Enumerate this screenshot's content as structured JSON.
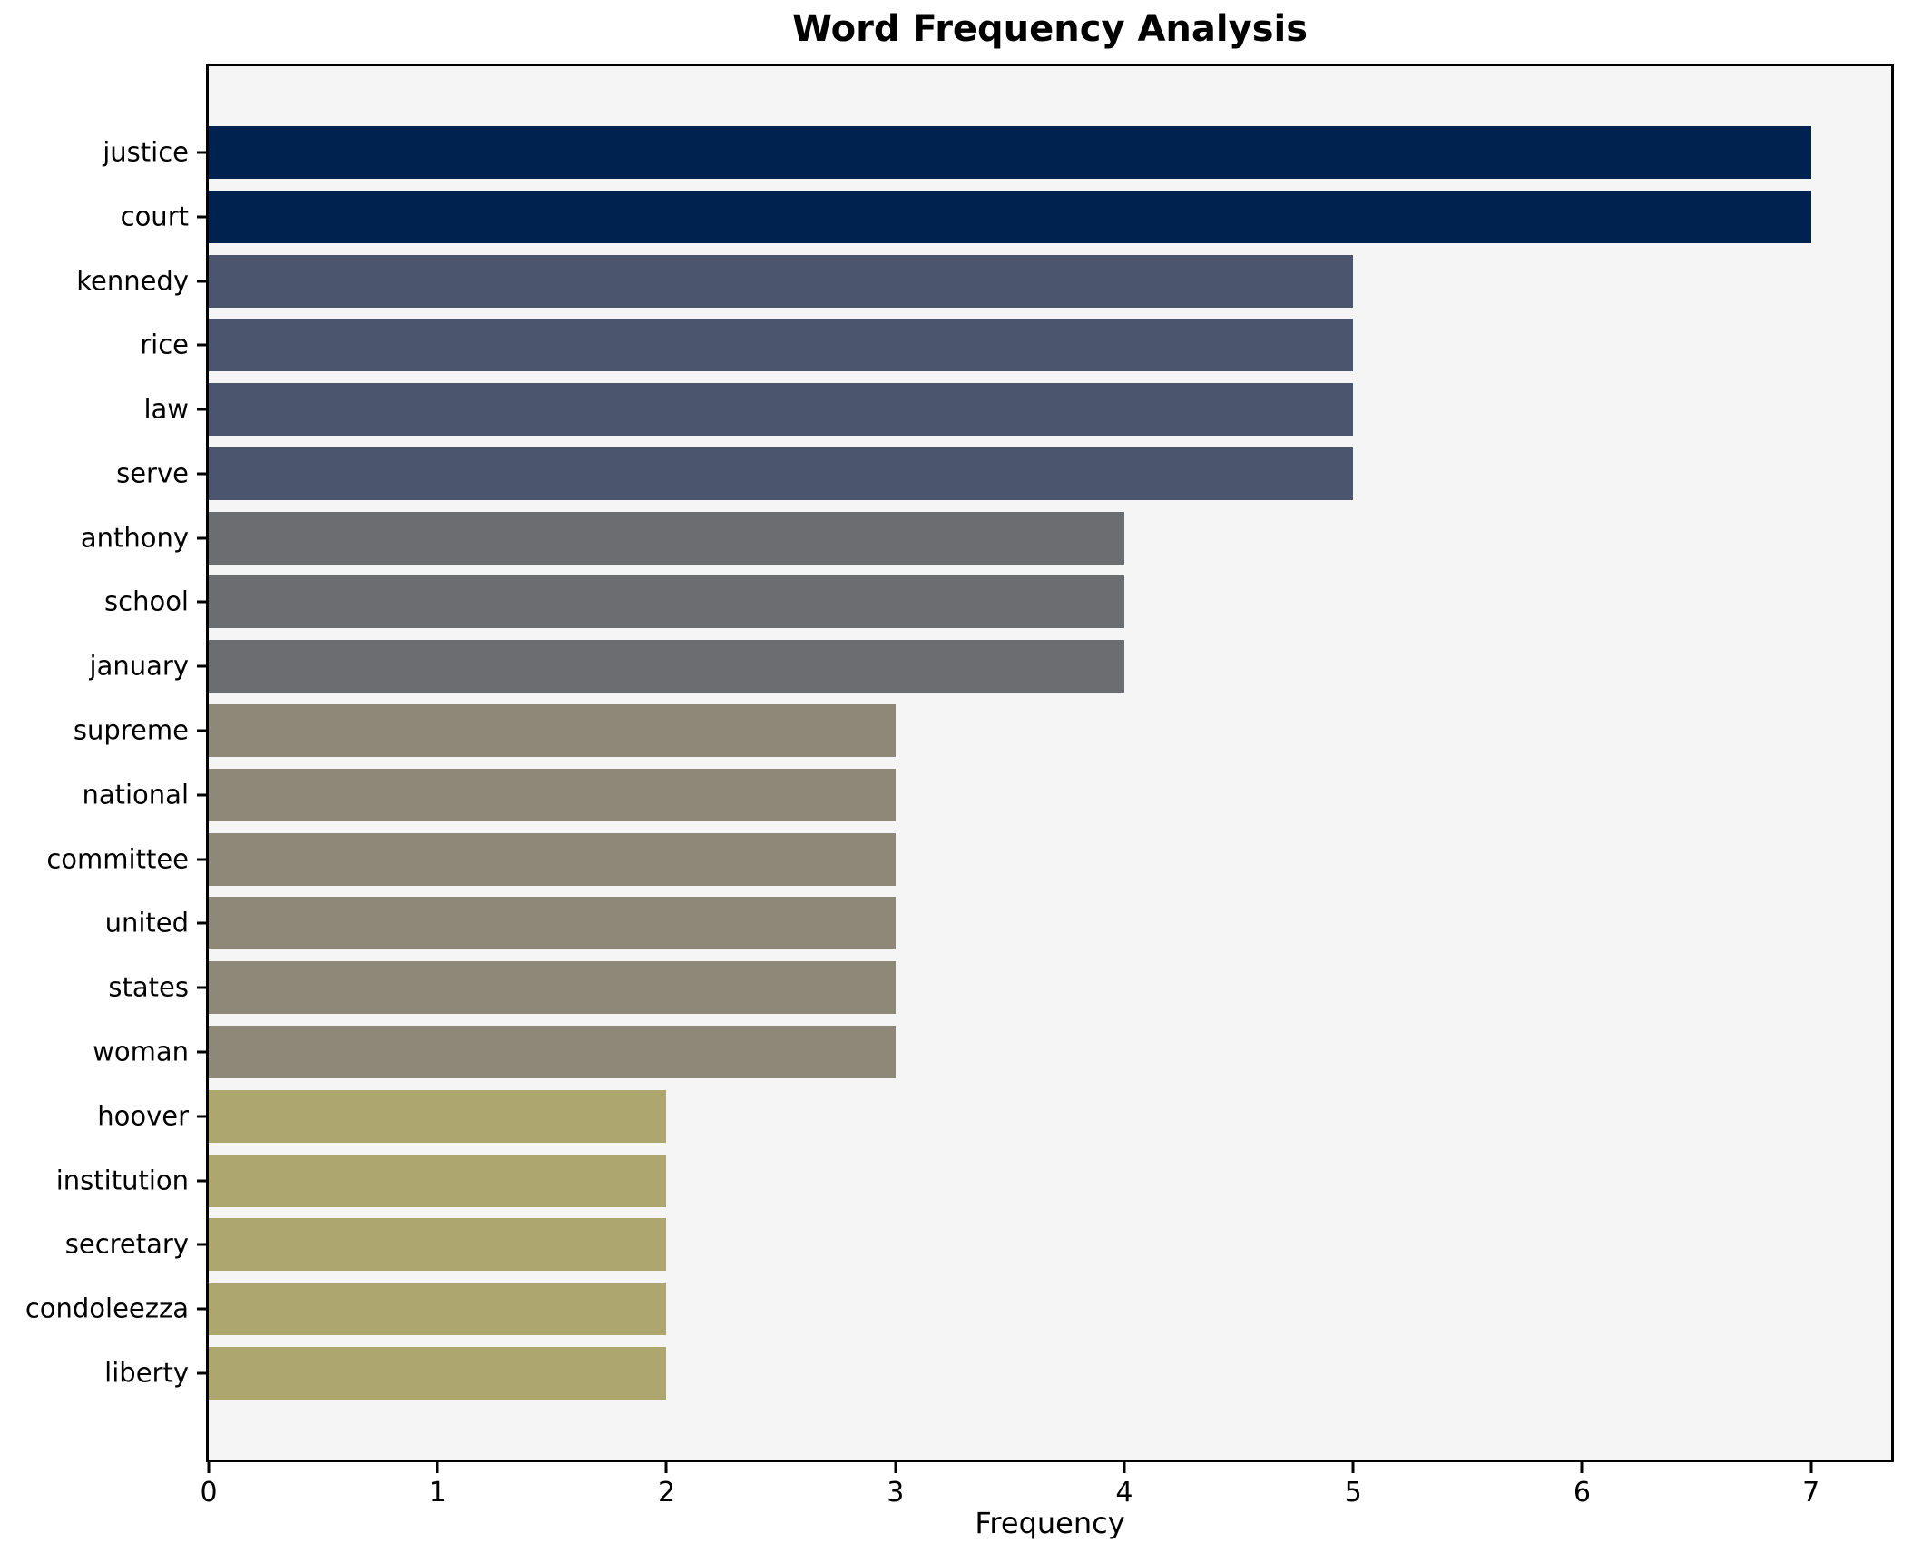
{
  "title": "Word Frequency Analysis",
  "chart_data": {
    "type": "bar",
    "orientation": "horizontal",
    "title": "Word Frequency Analysis",
    "xlabel": "Frequency",
    "ylabel": "",
    "categories": [
      "justice",
      "court",
      "kennedy",
      "rice",
      "law",
      "serve",
      "anthony",
      "school",
      "january",
      "supreme",
      "national",
      "committee",
      "united",
      "states",
      "woman",
      "hoover",
      "institution",
      "secretary",
      "condoleezza",
      "liberty"
    ],
    "values": [
      7,
      7,
      5,
      5,
      5,
      5,
      4,
      4,
      4,
      3,
      3,
      3,
      3,
      3,
      3,
      2,
      2,
      2,
      2,
      2
    ],
    "bar_colors": [
      "#00224e",
      "#00224e",
      "#4c556e",
      "#4c556e",
      "#4c556e",
      "#4c556e",
      "#6b6d70",
      "#6b6d70",
      "#6b6d70",
      "#8d8878",
      "#8d8878",
      "#8d8878",
      "#8d8878",
      "#8d8878",
      "#8d8878",
      "#ada66e",
      "#ada66e",
      "#ada66e",
      "#ada66e",
      "#ada66e"
    ],
    "x_ticks": [
      0,
      1,
      2,
      3,
      4,
      5,
      6,
      7
    ],
    "xlim": [
      0,
      7.35
    ],
    "grid": false,
    "legend_position": "none",
    "plot_background": "#f5f5f5",
    "spine_color": "#000000",
    "figure_background": "#ffffff"
  }
}
